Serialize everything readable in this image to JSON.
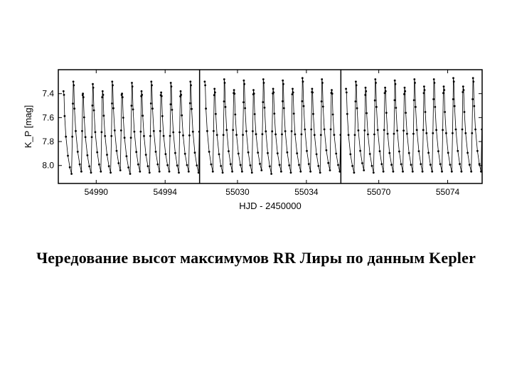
{
  "chart": {
    "type": "line",
    "background_color": "#ffffff",
    "axis_color": "#000000",
    "line_color": "#000000",
    "marker_color": "#000000",
    "line_width": 0.8,
    "marker_size": 1.4,
    "font_family": "sans-serif",
    "axis_label_fontsize": 13,
    "tick_fontsize": 12,
    "ylabel": "K_P [mag]",
    "xlabel": "HJD - 2450000",
    "y_axis": {
      "min": 7.2,
      "max": 8.15,
      "inverted": true,
      "ticks": [
        7.4,
        7.6,
        7.8,
        8.0
      ],
      "tick_labels": [
        "7.4",
        "7.6",
        "7.8",
        "8.0"
      ]
    },
    "panels": [
      {
        "xlim": [
          54987.8,
          54996.0
        ],
        "xticks": [
          54990,
          54994
        ],
        "xtick_labels": [
          "54990",
          "54994"
        ],
        "cycles": [
          {
            "peak_x": 54988.1,
            "peak_y": 7.38,
            "min_y": 8.07
          },
          {
            "peak_x": 54988.67,
            "peak_y": 7.3,
            "min_y": 8.05
          },
          {
            "peak_x": 54989.23,
            "peak_y": 7.4,
            "min_y": 8.06
          },
          {
            "peak_x": 54989.8,
            "peak_y": 7.32,
            "min_y": 8.05
          },
          {
            "peak_x": 54990.37,
            "peak_y": 7.38,
            "min_y": 8.06
          },
          {
            "peak_x": 54990.93,
            "peak_y": 7.3,
            "min_y": 8.04
          },
          {
            "peak_x": 54991.5,
            "peak_y": 7.4,
            "min_y": 8.07
          },
          {
            "peak_x": 54992.07,
            "peak_y": 7.31,
            "min_y": 8.05
          },
          {
            "peak_x": 54992.63,
            "peak_y": 7.38,
            "min_y": 8.06
          },
          {
            "peak_x": 54993.2,
            "peak_y": 7.3,
            "min_y": 8.05
          },
          {
            "peak_x": 54993.77,
            "peak_y": 7.39,
            "min_y": 8.05
          },
          {
            "peak_x": 54994.33,
            "peak_y": 7.31,
            "min_y": 8.06
          },
          {
            "peak_x": 54994.9,
            "peak_y": 7.38,
            "min_y": 8.05
          },
          {
            "peak_x": 54995.47,
            "peak_y": 7.3,
            "min_y": 8.06
          }
        ]
      },
      {
        "xlim": [
          55027.8,
          55036.0
        ],
        "xticks": [
          55030,
          55034
        ],
        "xtick_labels": [
          "55030",
          "55034"
        ],
        "cycles": [
          {
            "peak_x": 55028.1,
            "peak_y": 7.3,
            "min_y": 8.05
          },
          {
            "peak_x": 55028.67,
            "peak_y": 7.36,
            "min_y": 8.06
          },
          {
            "peak_x": 55029.23,
            "peak_y": 7.28,
            "min_y": 8.05
          },
          {
            "peak_x": 55029.8,
            "peak_y": 7.37,
            "min_y": 8.05
          },
          {
            "peak_x": 55030.37,
            "peak_y": 7.29,
            "min_y": 8.06
          },
          {
            "peak_x": 55030.93,
            "peak_y": 7.37,
            "min_y": 8.04
          },
          {
            "peak_x": 55031.5,
            "peak_y": 7.28,
            "min_y": 8.07
          },
          {
            "peak_x": 55032.07,
            "peak_y": 7.36,
            "min_y": 8.05
          },
          {
            "peak_x": 55032.63,
            "peak_y": 7.29,
            "min_y": 8.06
          },
          {
            "peak_x": 55033.2,
            "peak_y": 7.36,
            "min_y": 8.05
          },
          {
            "peak_x": 55033.77,
            "peak_y": 7.27,
            "min_y": 8.05
          },
          {
            "peak_x": 55034.33,
            "peak_y": 7.36,
            "min_y": 8.06
          },
          {
            "peak_x": 55034.9,
            "peak_y": 7.28,
            "min_y": 8.04
          },
          {
            "peak_x": 55035.47,
            "peak_y": 7.37,
            "min_y": 8.05
          }
        ]
      },
      {
        "xlim": [
          55067.8,
          55076.0
        ],
        "xticks": [
          55070,
          55074
        ],
        "xtick_labels": [
          "55070",
          "55074"
        ],
        "cycles": [
          {
            "peak_x": 55068.1,
            "peak_y": 7.36,
            "min_y": 8.06
          },
          {
            "peak_x": 55068.67,
            "peak_y": 7.3,
            "min_y": 8.04
          },
          {
            "peak_x": 55069.23,
            "peak_y": 7.35,
            "min_y": 8.06
          },
          {
            "peak_x": 55069.8,
            "peak_y": 7.28,
            "min_y": 8.05
          },
          {
            "peak_x": 55070.37,
            "peak_y": 7.35,
            "min_y": 8.05
          },
          {
            "peak_x": 55070.93,
            "peak_y": 7.29,
            "min_y": 8.05
          },
          {
            "peak_x": 55071.5,
            "peak_y": 7.35,
            "min_y": 8.05
          },
          {
            "peak_x": 55072.07,
            "peak_y": 7.28,
            "min_y": 8.05
          },
          {
            "peak_x": 55072.63,
            "peak_y": 7.34,
            "min_y": 8.05
          },
          {
            "peak_x": 55073.2,
            "peak_y": 7.28,
            "min_y": 8.05
          },
          {
            "peak_x": 55073.77,
            "peak_y": 7.34,
            "min_y": 8.05
          },
          {
            "peak_x": 55074.33,
            "peak_y": 7.27,
            "min_y": 8.05
          },
          {
            "peak_x": 55074.9,
            "peak_y": 7.34,
            "min_y": 8.05
          },
          {
            "peak_x": 55075.47,
            "peak_y": 7.27,
            "min_y": 8.05
          }
        ]
      }
    ]
  },
  "caption": "Чередование высот максимумов RR Лиры по данным Kepler"
}
